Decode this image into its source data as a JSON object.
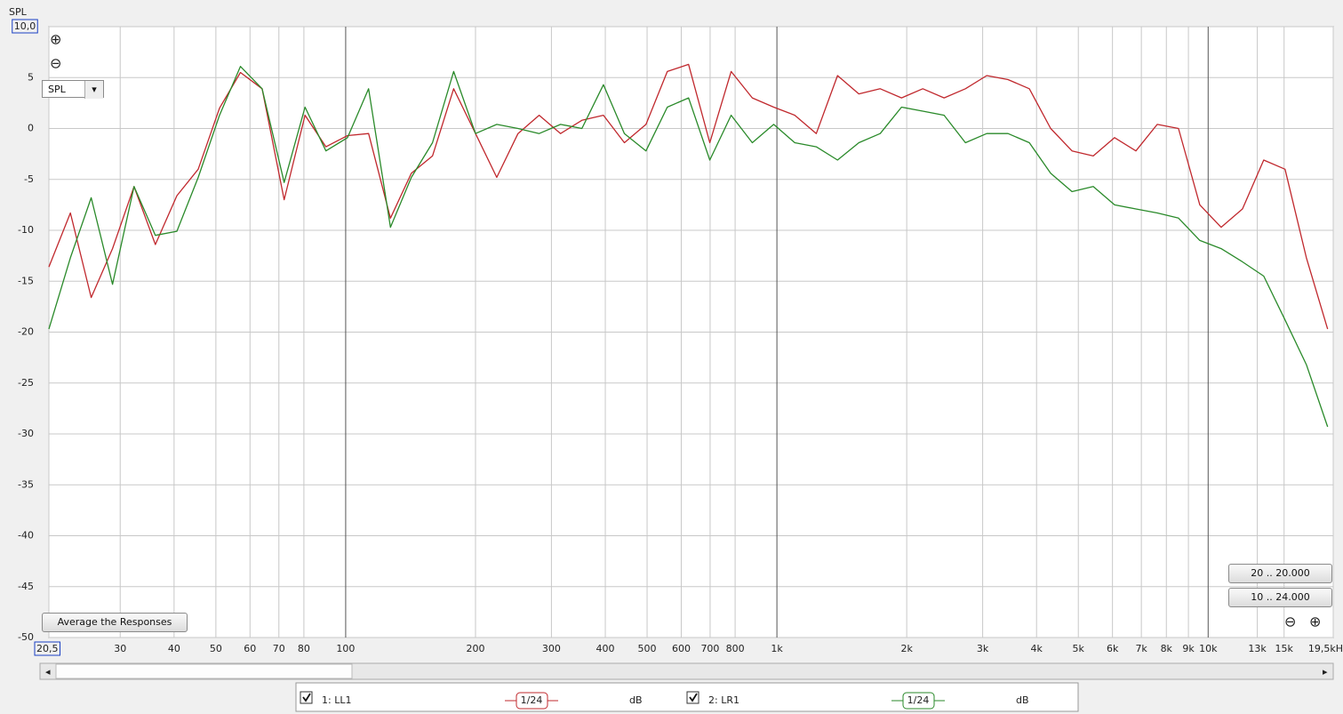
{
  "chart_data": {
    "type": "line",
    "y_label": "SPL",
    "log_x": true,
    "grid": true,
    "xlim": [
      20.5,
      19500
    ],
    "ylim": [
      -50,
      10
    ],
    "xticks": [
      {
        "value": 20.5,
        "label": "20,5"
      },
      30,
      40,
      50,
      60,
      70,
      80,
      100,
      200,
      300,
      400,
      500,
      600,
      700,
      800,
      {
        "value": 1000,
        "label": "1k"
      },
      {
        "value": 2000,
        "label": "2k"
      },
      {
        "value": 3000,
        "label": "3k"
      },
      {
        "value": 4000,
        "label": "4k"
      },
      {
        "value": 5000,
        "label": "5k"
      },
      {
        "value": 6000,
        "label": "6k"
      },
      {
        "value": 7000,
        "label": "7k"
      },
      {
        "value": 8000,
        "label": "8k"
      },
      {
        "value": 9000,
        "label": "9k"
      },
      {
        "value": 10000,
        "label": "10k"
      },
      {
        "value": 13000,
        "label": "13k"
      },
      {
        "value": 15000,
        "label": "15k"
      },
      {
        "value": 19500,
        "label": "19,5kH"
      }
    ],
    "yticks": [
      {
        "value": 10,
        "label": "10,0"
      },
      5,
      0,
      -5,
      -10,
      -15,
      -20,
      -25,
      -30,
      -35,
      -40,
      -45,
      -50
    ],
    "x": [
      20.5,
      23,
      25.7,
      28.8,
      32.3,
      36.2,
      40.6,
      45.5,
      51,
      57,
      64,
      72,
      80.5,
      90,
      101,
      113,
      127,
      142,
      159,
      178,
      200,
      224,
      251,
      281,
      315,
      353,
      396,
      443,
      497,
      557,
      624,
      699,
      783,
      877,
      983,
      1100,
      1234,
      1382,
      1549,
      1736,
      1945,
      2179,
      2442,
      2736,
      3066,
      3435,
      3849,
      4313,
      4833,
      5415,
      6068,
      6799,
      7618,
      8536,
      9565,
      10718,
      12009,
      13456,
      15078,
      16894,
      18930
    ],
    "series": [
      {
        "name": "1: LL1",
        "smoothing": "1/24",
        "unit": "dB",
        "color": "#c0282d",
        "values": [
          -13.6,
          -8.3,
          -16.6,
          -11.8,
          -5.7,
          -11.4,
          -6.6,
          -4.0,
          2,
          5.5,
          3.9,
          -7,
          1.3,
          -1.8,
          -0.7,
          -0.5,
          -8.8,
          -4.4,
          -2.7,
          3.9,
          -0.5,
          -4.8,
          -0.5,
          1.3,
          -0.5,
          0.8,
          1.3,
          -1.4,
          0.4,
          5.6,
          6.3,
          -1.4,
          5.6,
          3.0,
          2.1,
          1.3,
          -0.5,
          5.2,
          3.4,
          3.9,
          3.0,
          3.9,
          3.0,
          3.9,
          5.2,
          4.8,
          3.9,
          0,
          -2.2,
          -2.7,
          -0.9,
          -2.2,
          0.4,
          0,
          -7.5,
          -9.7,
          -7.9,
          -3.1,
          -4.0,
          -12.7,
          -19.7
        ]
      },
      {
        "name": "2: LR1",
        "smoothing": "1/24",
        "unit": "dB",
        "color": "#2a8a2a",
        "values": [
          -19.7,
          -12.7,
          -6.8,
          -15.3,
          -5.7,
          -10.5,
          -10.1,
          -4.8,
          1.3,
          6.1,
          3.9,
          -5.3,
          2.1,
          -2.2,
          -0.9,
          3.9,
          -9.7,
          -4.8,
          -1.4,
          5.6,
          -0.5,
          0.4,
          0,
          -0.5,
          0.4,
          0,
          4.3,
          -0.5,
          -2.2,
          2.1,
          3.0,
          -3.1,
          1.3,
          -1.4,
          0.4,
          -1.4,
          -1.8,
          -3.1,
          -1.4,
          -0.5,
          2.1,
          1.7,
          1.3,
          -1.4,
          -0.5,
          -0.5,
          -1.4,
          -4.4,
          -6.2,
          -5.7,
          -7.5,
          -7.9,
          -8.3,
          -8.8,
          -11,
          -11.8,
          -13.1,
          -14.5,
          -18.8,
          -23.2,
          -29.3
        ]
      }
    ]
  },
  "controls": {
    "dropdown": "SPL",
    "average_button": "Average the Responses",
    "range_buttons": [
      "20 .. 20.000",
      "10 .. 24.000"
    ]
  }
}
